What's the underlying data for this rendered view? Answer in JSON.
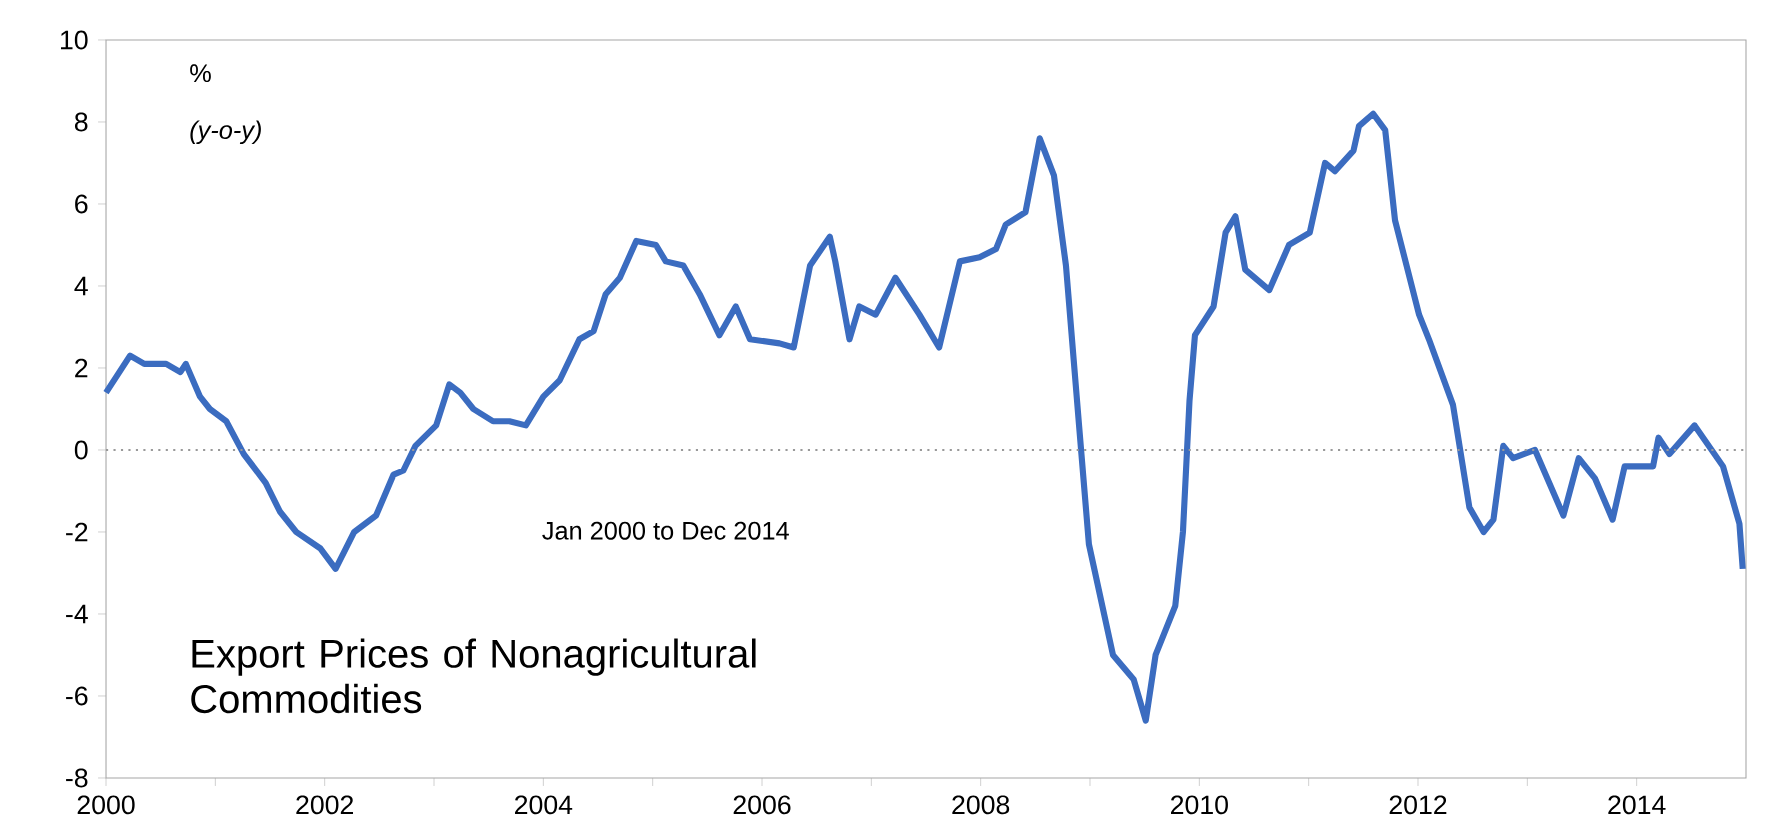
{
  "chart_data": {
    "type": "line",
    "title": "Export Prices of Nonagricultural Commodities",
    "annotations": [
      "%",
      "(y-o-y)",
      "Jan 2000 to Dec 2014"
    ],
    "x": [
      2000.0,
      2000.22,
      2000.35,
      2000.55,
      2000.68,
      2000.73,
      2000.86,
      2000.95,
      2001.1,
      2001.26,
      2001.46,
      2001.59,
      2001.74,
      2001.96,
      2002.1,
      2002.27,
      2002.47,
      2002.63,
      2002.72,
      2002.83,
      2003.02,
      2003.14,
      2003.24,
      2003.36,
      2003.54,
      2003.69,
      2003.84,
      2004.0,
      2004.15,
      2004.33,
      2004.46,
      2004.57,
      2004.7,
      2004.85,
      2005.03,
      2005.12,
      2005.28,
      2005.43,
      2005.61,
      2005.76,
      2005.89,
      2006.16,
      2006.29,
      2006.44,
      2006.62,
      2006.67,
      2006.8,
      2006.89,
      2007.04,
      2007.22,
      2007.44,
      2007.62,
      2007.81,
      2007.99,
      2008.14,
      2008.23,
      2008.41,
      2008.54,
      2008.67,
      2008.78,
      2008.9,
      2008.99,
      2009.21,
      2009.4,
      2009.51,
      2009.6,
      2009.78,
      2009.85,
      2009.91,
      2009.96,
      2010.13,
      2010.24,
      2010.33,
      2010.42,
      2010.64,
      2010.82,
      2011.01,
      2011.15,
      2011.24,
      2011.41,
      2011.46,
      2011.59,
      2011.7,
      2011.79,
      2012.01,
      2012.1,
      2012.32,
      2012.47,
      2012.6,
      2012.69,
      2012.78,
      2012.87,
      2013.07,
      2013.33,
      2013.47,
      2013.62,
      2013.78,
      2013.89,
      2014.15,
      2014.2,
      2014.3,
      2014.53,
      2014.79,
      2014.94,
      2014.97
    ],
    "series": [
      {
        "color": "#3b6cc0",
        "values": [
          1.4,
          2.3,
          2.1,
          2.1,
          1.9,
          2.1,
          1.3,
          1.0,
          0.7,
          -0.1,
          -0.8,
          -1.5,
          -2.0,
          -2.4,
          -2.9,
          -2.0,
          -1.6,
          -0.6,
          -0.5,
          0.1,
          0.6,
          1.6,
          1.4,
          1.0,
          0.7,
          0.7,
          0.6,
          1.3,
          1.7,
          2.7,
          2.9,
          3.8,
          4.2,
          5.1,
          5.0,
          4.6,
          4.5,
          3.8,
          2.8,
          3.5,
          2.7,
          2.6,
          2.5,
          4.5,
          5.2,
          4.6,
          2.7,
          3.5,
          3.3,
          4.2,
          3.3,
          2.5,
          4.6,
          4.7,
          4.9,
          5.5,
          5.8,
          7.6,
          6.7,
          4.5,
          0.6,
          -2.3,
          -5.0,
          -5.6,
          -6.6,
          -5.0,
          -3.8,
          -2.0,
          1.2,
          2.8,
          3.5,
          5.3,
          5.7,
          4.4,
          3.9,
          5.0,
          5.3,
          7.0,
          6.8,
          7.3,
          7.9,
          8.2,
          7.8,
          5.6,
          3.3,
          2.7,
          1.1,
          -1.4,
          -2.0,
          -1.7,
          0.1,
          -0.2,
          0.0,
          -1.6,
          -0.2,
          -0.7,
          -1.7,
          -0.4,
          -0.4,
          0.3,
          -0.1,
          0.6,
          -0.4,
          -1.8,
          -2.9
        ]
      }
    ],
    "xlim": [
      2000,
      2015
    ],
    "ylim": [
      -8,
      10
    ],
    "xticks": [
      2000,
      {
        "value": 2001,
        "label": null
      },
      2002,
      {
        "value": 2003,
        "label": null
      },
      2004,
      {
        "value": 2005,
        "label": null
      },
      2006,
      {
        "value": 2007,
        "label": null
      },
      2008,
      {
        "value": 2009,
        "label": null
      },
      2010,
      {
        "value": 2011,
        "label": null
      },
      2012,
      {
        "value": 2013,
        "label": null
      },
      2014
    ],
    "yticks": [
      -8,
      -6,
      -4,
      -2,
      0,
      2,
      4,
      6,
      8,
      10
    ],
    "ref_lines": [
      {
        "axis": "y",
        "value": 0,
        "color": "#999999",
        "line_style": "dotted"
      }
    ],
    "line_style": "solid"
  }
}
